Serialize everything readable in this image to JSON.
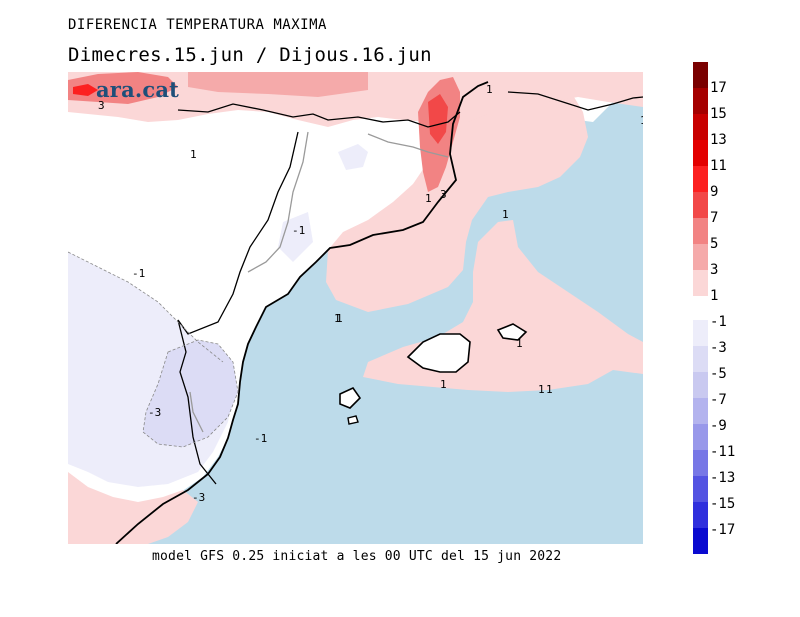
{
  "header": {
    "title": "DIFERENCIA TEMPERATURA MAXIMA",
    "subtitle": "Dimecres.15.jun / Dijous.16.jun"
  },
  "footer": {
    "model_note": "model GFS 0.25 iniciat a les 00 UTC del 15 jun 2022"
  },
  "logo": {
    "text": "ara.cat"
  },
  "map": {
    "sea_color": "#bddbea",
    "land_neutral_color": "#ffffff",
    "contour_labels": [
      "3",
      "1",
      "1",
      "1",
      "3",
      "1",
      "-1",
      "-1",
      "1",
      "1",
      "1",
      "1",
      "1",
      "-3",
      "-1",
      "-3",
      "1",
      "1"
    ]
  },
  "legend": {
    "positive": [
      {
        "label": "17",
        "color": "#7a0000"
      },
      {
        "label": "15",
        "color": "#a50000"
      },
      {
        "label": "13",
        "color": "#c80000"
      },
      {
        "label": "11",
        "color": "#e30000"
      },
      {
        "label": "9",
        "color": "#fc2020"
      },
      {
        "label": "7",
        "color": "#f24848"
      },
      {
        "label": "5",
        "color": "#f28383"
      },
      {
        "label": "3",
        "color": "#f5aaaa"
      },
      {
        "label": "1",
        "color": "#fbd7d7"
      }
    ],
    "negative": [
      {
        "label": "-1",
        "color": "#ededfa"
      },
      {
        "label": "-3",
        "color": "#dcdcf5"
      },
      {
        "label": "-5",
        "color": "#c9c9f0"
      },
      {
        "label": "-7",
        "color": "#b3b3ee"
      },
      {
        "label": "-9",
        "color": "#9898ea"
      },
      {
        "label": "-11",
        "color": "#7777e6"
      },
      {
        "label": "-13",
        "color": "#5353e2"
      },
      {
        "label": "-15",
        "color": "#2f2fdd"
      },
      {
        "label": "-17",
        "color": "#0a0ad0"
      }
    ]
  }
}
